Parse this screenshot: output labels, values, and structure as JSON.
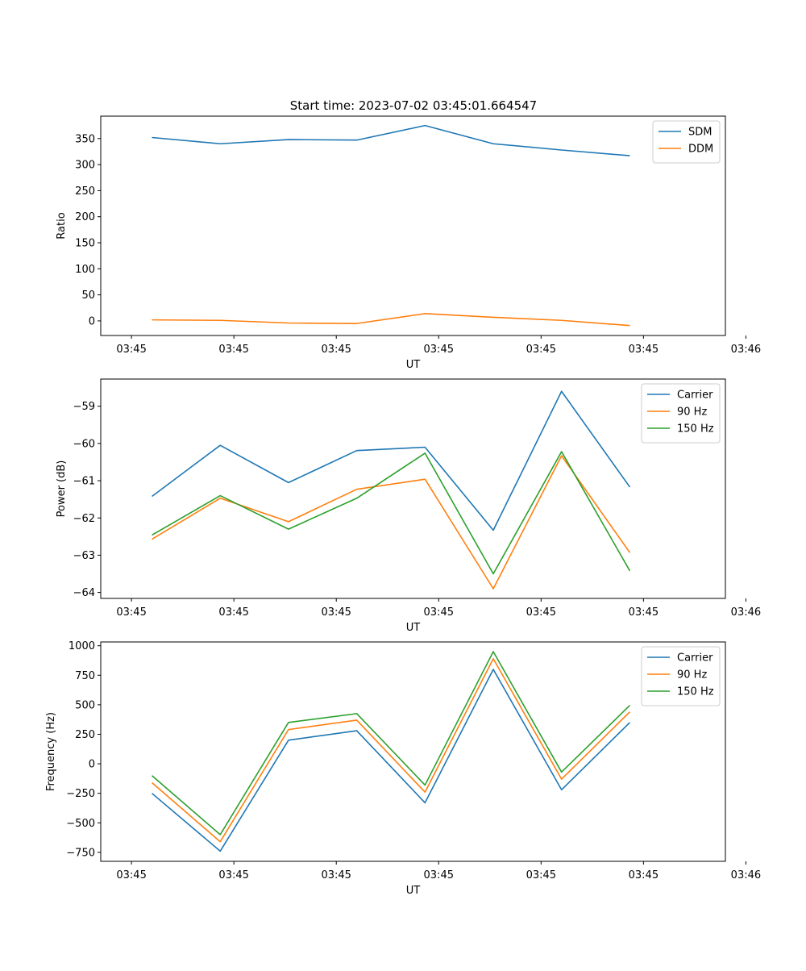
{
  "figure_title": "Start time: 2023-07-02 03:45:01.664547",
  "colors": {
    "blue": "#1f77b4",
    "orange": "#ff7f0e",
    "green": "#2ca02c"
  },
  "chart_data": [
    {
      "type": "line",
      "title": "Start time: 2023-07-02 03:45:01.664547",
      "xlabel": "UT",
      "ylabel": "Ratio",
      "x": [
        1,
        2,
        3,
        4,
        5,
        6,
        7,
        8
      ],
      "xlim": [
        0.25,
        9.4
      ],
      "xticks": [
        0.7,
        2.2,
        3.7,
        5.2,
        6.7,
        8.2,
        9.7
      ],
      "xtick_labels": [
        "03:45",
        "03:45",
        "03:45",
        "03:45",
        "03:45",
        "03:45",
        "03:46"
      ],
      "ylim": [
        -28,
        393
      ],
      "yticks": [
        0,
        50,
        100,
        150,
        200,
        250,
        300,
        350
      ],
      "ytick_labels": [
        "0",
        "50",
        "100",
        "150",
        "200",
        "250",
        "300",
        "350"
      ],
      "legend_position": "top-right",
      "series": [
        {
          "name": "SDM",
          "color": "#1f77b4",
          "values": [
            352,
            340,
            348,
            347,
            375,
            340,
            328,
            317
          ]
        },
        {
          "name": "DDM",
          "color": "#ff7f0e",
          "values": [
            2,
            1,
            -4,
            -5,
            14,
            7,
            1,
            -9
          ]
        }
      ]
    },
    {
      "type": "line",
      "title": "",
      "xlabel": "UT",
      "ylabel": "Power (dB)",
      "x": [
        1,
        2,
        3,
        4,
        5,
        6,
        7,
        8
      ],
      "xlim": [
        0.25,
        9.4
      ],
      "xticks": [
        0.7,
        2.2,
        3.7,
        5.2,
        6.7,
        8.2,
        9.7
      ],
      "xtick_labels": [
        "03:45",
        "03:45",
        "03:45",
        "03:45",
        "03:45",
        "03:45",
        "03:46"
      ],
      "ylim": [
        -64.16,
        -58.27
      ],
      "yticks": [
        -64,
        -63,
        -62,
        -61,
        -60,
        -59
      ],
      "ytick_labels": [
        "−64",
        "−63",
        "−62",
        "−61",
        "−60",
        "−59"
      ],
      "legend_position": "top-right",
      "series": [
        {
          "name": "Carrier",
          "color": "#1f77b4",
          "values": [
            -61.42,
            -60.05,
            -61.05,
            -60.19,
            -60.1,
            -62.33,
            -58.6,
            -61.17
          ]
        },
        {
          "name": "90 Hz",
          "color": "#ff7f0e",
          "values": [
            -62.57,
            -61.47,
            -62.1,
            -61.23,
            -60.96,
            -63.9,
            -60.33,
            -62.93
          ]
        },
        {
          "name": "150 Hz",
          "color": "#2ca02c",
          "values": [
            -62.46,
            -61.4,
            -62.3,
            -61.47,
            -60.26,
            -63.5,
            -60.22,
            -63.42
          ]
        }
      ]
    },
    {
      "type": "line",
      "title": "",
      "xlabel": "UT",
      "ylabel": "Frequency (Hz)",
      "x": [
        1,
        2,
        3,
        4,
        5,
        6,
        7,
        8
      ],
      "xlim": [
        0.25,
        9.4
      ],
      "xticks": [
        0.7,
        2.2,
        3.7,
        5.2,
        6.7,
        8.2,
        9.7
      ],
      "xtick_labels": [
        "03:45",
        "03:45",
        "03:45",
        "03:45",
        "03:45",
        "03:45",
        "03:46"
      ],
      "ylim": [
        -826,
        1032
      ],
      "yticks": [
        -750,
        -500,
        -250,
        0,
        250,
        500,
        750,
        1000
      ],
      "ytick_labels": [
        "−750",
        "−500",
        "−250",
        "0",
        "250",
        "500",
        "750",
        "1000"
      ],
      "legend_position": "top-right",
      "series": [
        {
          "name": "Carrier",
          "color": "#1f77b4",
          "values": [
            -250,
            -740,
            200,
            280,
            -330,
            800,
            -220,
            350
          ]
        },
        {
          "name": "90 Hz",
          "color": "#ff7f0e",
          "values": [
            -160,
            -660,
            290,
            370,
            -240,
            890,
            -130,
            440
          ]
        },
        {
          "name": "150 Hz",
          "color": "#2ca02c",
          "values": [
            -100,
            -600,
            350,
            425,
            -180,
            950,
            -70,
            495
          ]
        }
      ]
    }
  ]
}
